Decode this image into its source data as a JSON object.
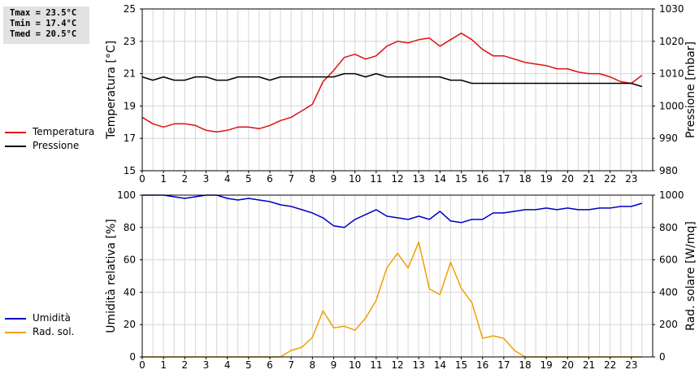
{
  "stats": {
    "tmax": "Tmax = 23.5°C",
    "tmin": "Tmin = 17.4°C",
    "tmed": "Tmed = 20.5°C"
  },
  "colors": {
    "temperature": "#dd1111",
    "pressure": "#000000",
    "humidity": "#0000c0",
    "solar": "#f0a000"
  },
  "legend_top": [
    {
      "label": "Temperatura",
      "color": "#dd1111"
    },
    {
      "label": "Pressione",
      "color": "#000000"
    }
  ],
  "legend_bottom": [
    {
      "label": "Umidità",
      "color": "#0000c0"
    },
    {
      "label": "Rad. sol.",
      "color": "#f0a000"
    }
  ],
  "chart_data": [
    {
      "type": "line",
      "x_ticks": [
        "0",
        "1",
        "2",
        "3",
        "4",
        "5",
        "6",
        "7",
        "8",
        "9",
        "10",
        "11",
        "12",
        "13",
        "14",
        "15",
        "16",
        "17",
        "18",
        "19",
        "20",
        "21",
        "22",
        "23"
      ],
      "xlim": [
        0,
        24
      ],
      "ylabel": "Temperatura [°C]",
      "ylim": [
        15,
        25
      ],
      "y_ticks": [
        15,
        17,
        19,
        21,
        23,
        25
      ],
      "y2label": "Pressione [mbar]",
      "y2lim": [
        980,
        1030
      ],
      "y2_ticks": [
        980,
        990,
        1000,
        1010,
        1020,
        1030
      ],
      "grid": true,
      "series": [
        {
          "name": "Temperatura",
          "axis": "left",
          "x": [
            0,
            0.5,
            1,
            1.5,
            2,
            2.5,
            3,
            3.5,
            4,
            4.5,
            5,
            5.5,
            6,
            6.5,
            7,
            7.5,
            8,
            8.5,
            9,
            9.5,
            10,
            10.5,
            11,
            11.5,
            12,
            12.5,
            13,
            13.5,
            14,
            14.5,
            15,
            15.5,
            16,
            16.5,
            17,
            17.5,
            18,
            18.5,
            19,
            19.5,
            20,
            20.5,
            21,
            21.5,
            22,
            22.5,
            23,
            23.5
          ],
          "values": [
            18.3,
            17.9,
            17.7,
            17.9,
            17.9,
            17.8,
            17.5,
            17.4,
            17.5,
            17.7,
            17.7,
            17.6,
            17.8,
            18.1,
            18.3,
            18.7,
            19.1,
            20.5,
            21.2,
            22.0,
            22.2,
            21.9,
            22.1,
            22.7,
            23.0,
            22.9,
            23.1,
            23.2,
            22.7,
            23.1,
            23.5,
            23.1,
            22.5,
            22.1,
            22.1,
            21.9,
            21.7,
            21.6,
            21.5,
            21.3,
            21.3,
            21.1,
            21.0,
            21.0,
            20.8,
            20.5,
            20.4,
            20.9
          ]
        },
        {
          "name": "Pressione",
          "axis": "right",
          "x": [
            0,
            0.5,
            1,
            1.5,
            2,
            2.5,
            3,
            3.5,
            4,
            4.5,
            5,
            5.5,
            6,
            6.5,
            7,
            7.5,
            8,
            8.5,
            9,
            9.5,
            10,
            10.5,
            11,
            11.5,
            12,
            12.5,
            13,
            13.5,
            14,
            14.5,
            15,
            15.5,
            16,
            16.5,
            17,
            17.5,
            18,
            18.5,
            19,
            19.5,
            20,
            20.5,
            21,
            21.5,
            22,
            22.5,
            23,
            23.5
          ],
          "values": [
            1009,
            1008,
            1009,
            1008,
            1008,
            1009,
            1009,
            1008,
            1008,
            1009,
            1009,
            1009,
            1008,
            1009,
            1009,
            1009,
            1009,
            1009,
            1009,
            1010,
            1010,
            1009,
            1010,
            1009,
            1009,
            1009,
            1009,
            1009,
            1009,
            1008,
            1008,
            1007,
            1007,
            1007,
            1007,
            1007,
            1007,
            1007,
            1007,
            1007,
            1007,
            1007,
            1007,
            1007,
            1007,
            1007,
            1007,
            1006
          ]
        }
      ]
    },
    {
      "type": "line",
      "x_ticks": [
        "0",
        "1",
        "2",
        "3",
        "4",
        "5",
        "6",
        "7",
        "8",
        "9",
        "10",
        "11",
        "12",
        "13",
        "14",
        "15",
        "16",
        "17",
        "18",
        "19",
        "20",
        "21",
        "22",
        "23"
      ],
      "xlim": [
        0,
        24
      ],
      "ylabel": "Umidità relativa [%]",
      "ylim": [
        0,
        100
      ],
      "y_ticks": [
        0,
        20,
        40,
        60,
        80,
        100
      ],
      "y2label": "Rad. solare [W/mq]",
      "y2lim": [
        0,
        1000
      ],
      "y2_ticks": [
        0,
        200,
        400,
        600,
        800,
        1000
      ],
      "grid": true,
      "series": [
        {
          "name": "Umidità",
          "axis": "left",
          "x": [
            0,
            0.5,
            1,
            1.5,
            2,
            2.5,
            3,
            3.5,
            4,
            4.5,
            5,
            5.5,
            6,
            6.5,
            7,
            7.5,
            8,
            8.5,
            9,
            9.5,
            10,
            10.5,
            11,
            11.5,
            12,
            12.5,
            13,
            13.5,
            14,
            14.5,
            15,
            15.5,
            16,
            16.5,
            17,
            17.5,
            18,
            18.5,
            19,
            19.5,
            20,
            20.5,
            21,
            21.5,
            22,
            22.5,
            23,
            23.5
          ],
          "values": [
            100,
            100,
            100,
            99,
            98,
            99,
            100,
            100,
            98,
            97,
            98,
            97,
            96,
            94,
            93,
            91,
            89,
            86,
            81,
            80,
            85,
            88,
            91,
            87,
            86,
            85,
            87,
            85,
            90,
            84,
            83,
            85,
            85,
            89,
            89,
            90,
            91,
            91,
            92,
            91,
            92,
            91,
            91,
            92,
            92,
            93,
            93,
            95
          ]
        },
        {
          "name": "Rad. sol.",
          "axis": "right",
          "x": [
            0,
            0.5,
            1,
            1.5,
            2,
            2.5,
            3,
            3.5,
            4,
            4.5,
            5,
            5.5,
            6,
            6.5,
            7,
            7.5,
            8,
            8.5,
            9,
            9.5,
            10,
            10.5,
            11,
            11.5,
            12,
            12.5,
            13,
            13.5,
            14,
            14.5,
            15,
            15.5,
            16,
            16.5,
            17,
            17.5,
            18,
            18.5,
            19,
            19.5,
            20,
            20.5,
            21,
            21.5,
            22,
            22.5,
            23,
            23.5
          ],
          "values": [
            0,
            0,
            0,
            0,
            0,
            0,
            0,
            0,
            0,
            0,
            0,
            0,
            0,
            0,
            40,
            60,
            120,
            285,
            180,
            190,
            165,
            240,
            350,
            550,
            640,
            550,
            710,
            420,
            385,
            585,
            425,
            335,
            115,
            130,
            115,
            40,
            0,
            0,
            0,
            0,
            0,
            0,
            0,
            0,
            0,
            0,
            0,
            0
          ]
        }
      ]
    }
  ]
}
